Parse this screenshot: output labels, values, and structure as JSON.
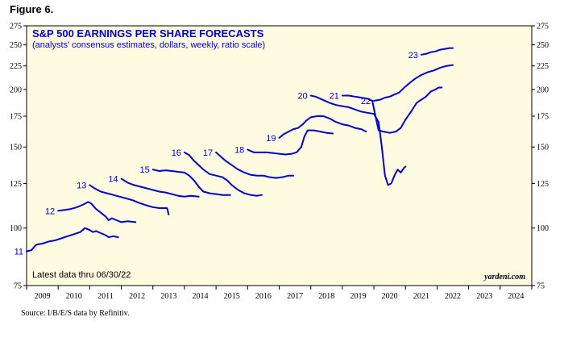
{
  "figure_label": "Figure 6.",
  "source_note": "Source: I/B/E/S data by Refinitiv.",
  "colors": {
    "series": "#0000cc",
    "plot_bg": "#fffbe0",
    "axis": "#000000"
  },
  "chart_data": {
    "type": "line",
    "title": "S&P 500 EARNINGS PER SHARE FORECASTS",
    "subtitle": "(analysts’ consensus estimates, dollars, weekly, ratio scale)",
    "latest_note": "Latest data thru 06/30/22",
    "brand": "yardeni.com",
    "y_scale": "log",
    "ylim": [
      75,
      275
    ],
    "yticks": [
      75,
      100,
      125,
      150,
      175,
      200,
      225,
      250,
      275
    ],
    "xlim": [
      2009,
      2025
    ],
    "xticks": [
      "2009",
      "2010",
      "2011",
      "2012",
      "2013",
      "2014",
      "2015",
      "2016",
      "2017",
      "2018",
      "2019",
      "2020",
      "2021",
      "2022",
      "2023",
      "2024"
    ],
    "grid": false,
    "series": [
      {
        "name": "11",
        "points": [
          [
            2009.0,
            89
          ],
          [
            2009.15,
            89.5
          ],
          [
            2009.3,
            92
          ],
          [
            2009.5,
            92.5
          ],
          [
            2009.7,
            93.5
          ],
          [
            2009.9,
            94
          ],
          [
            2010.1,
            95
          ],
          [
            2010.3,
            96
          ],
          [
            2010.5,
            97
          ],
          [
            2010.7,
            98
          ],
          [
            2010.85,
            100
          ],
          [
            2011.0,
            99
          ],
          [
            2011.1,
            98
          ],
          [
            2011.2,
            98.5
          ],
          [
            2011.35,
            97.5
          ],
          [
            2011.5,
            96.5
          ],
          [
            2011.6,
            95.5
          ],
          [
            2011.75,
            96
          ],
          [
            2011.9,
            95.5
          ]
        ]
      },
      {
        "name": "12",
        "points": [
          [
            2010.0,
            109
          ],
          [
            2010.2,
            109.5
          ],
          [
            2010.4,
            110
          ],
          [
            2010.6,
            111
          ],
          [
            2010.8,
            112.5
          ],
          [
            2010.95,
            114
          ],
          [
            2011.05,
            113
          ],
          [
            2011.2,
            110
          ],
          [
            2011.35,
            108
          ],
          [
            2011.5,
            106
          ],
          [
            2011.6,
            104
          ],
          [
            2011.7,
            105
          ],
          [
            2011.85,
            104
          ],
          [
            2012.0,
            103
          ],
          [
            2012.2,
            103.5
          ],
          [
            2012.45,
            103
          ]
        ]
      },
      {
        "name": "13",
        "points": [
          [
            2011.0,
            124
          ],
          [
            2011.15,
            122
          ],
          [
            2011.35,
            120
          ],
          [
            2011.55,
            119
          ],
          [
            2011.75,
            118
          ],
          [
            2011.95,
            117
          ],
          [
            2012.15,
            116
          ],
          [
            2012.35,
            115
          ],
          [
            2012.55,
            113.5
          ],
          [
            2012.8,
            112
          ],
          [
            2013.0,
            111
          ],
          [
            2013.2,
            110.5
          ],
          [
            2013.45,
            110.5
          ],
          [
            2013.5,
            107
          ]
        ]
      },
      {
        "name": "14",
        "points": [
          [
            2012.0,
            128
          ],
          [
            2012.2,
            125.5
          ],
          [
            2012.4,
            124
          ],
          [
            2012.6,
            123
          ],
          [
            2012.8,
            122
          ],
          [
            2013.0,
            121
          ],
          [
            2013.2,
            120
          ],
          [
            2013.4,
            119.5
          ],
          [
            2013.6,
            118.5
          ],
          [
            2013.8,
            117.5
          ],
          [
            2014.0,
            117
          ],
          [
            2014.2,
            117.5
          ],
          [
            2014.45,
            117
          ]
        ]
      },
      {
        "name": "15",
        "points": [
          [
            2013.0,
            134
          ],
          [
            2013.2,
            133
          ],
          [
            2013.4,
            133.5
          ],
          [
            2013.6,
            133
          ],
          [
            2013.8,
            132.5
          ],
          [
            2014.0,
            132
          ],
          [
            2014.15,
            130
          ],
          [
            2014.3,
            127
          ],
          [
            2014.45,
            123
          ],
          [
            2014.6,
            120
          ],
          [
            2014.8,
            119
          ],
          [
            2015.0,
            118.5
          ],
          [
            2015.2,
            118
          ],
          [
            2015.45,
            118
          ]
        ]
      },
      {
        "name": "16",
        "points": [
          [
            2014.0,
            146
          ],
          [
            2014.15,
            144
          ],
          [
            2014.3,
            140
          ],
          [
            2014.45,
            137
          ],
          [
            2014.6,
            134
          ],
          [
            2014.8,
            131
          ],
          [
            2015.0,
            130
          ],
          [
            2015.2,
            129
          ],
          [
            2015.35,
            127
          ],
          [
            2015.5,
            124
          ],
          [
            2015.7,
            121
          ],
          [
            2015.9,
            119
          ],
          [
            2016.1,
            118
          ],
          [
            2016.3,
            117.5
          ],
          [
            2016.45,
            118
          ]
        ]
      },
      {
        "name": "17",
        "points": [
          [
            2015.0,
            146
          ],
          [
            2015.15,
            143
          ],
          [
            2015.3,
            140
          ],
          [
            2015.5,
            137
          ],
          [
            2015.7,
            134
          ],
          [
            2015.9,
            132
          ],
          [
            2016.1,
            130.5
          ],
          [
            2016.3,
            130
          ],
          [
            2016.5,
            130
          ],
          [
            2016.7,
            129
          ],
          [
            2016.9,
            128.5
          ],
          [
            2017.1,
            129
          ],
          [
            2017.3,
            130
          ],
          [
            2017.45,
            130
          ]
        ]
      },
      {
        "name": "18",
        "points": [
          [
            2016.0,
            148
          ],
          [
            2016.2,
            146
          ],
          [
            2016.4,
            146
          ],
          [
            2016.6,
            146
          ],
          [
            2016.8,
            145.5
          ],
          [
            2017.0,
            145
          ],
          [
            2017.2,
            144.5
          ],
          [
            2017.4,
            145
          ],
          [
            2017.55,
            146
          ],
          [
            2017.7,
            150
          ],
          [
            2017.8,
            158
          ],
          [
            2017.9,
            163
          ],
          [
            2018.1,
            163
          ],
          [
            2018.3,
            162
          ],
          [
            2018.5,
            161
          ],
          [
            2018.7,
            160.5
          ]
        ]
      },
      {
        "name": "19",
        "points": [
          [
            2017.0,
            157
          ],
          [
            2017.15,
            160
          ],
          [
            2017.3,
            162
          ],
          [
            2017.45,
            164
          ],
          [
            2017.6,
            165
          ],
          [
            2017.75,
            168
          ],
          [
            2017.85,
            171
          ],
          [
            2018.0,
            174
          ],
          [
            2018.2,
            175
          ],
          [
            2018.4,
            175
          ],
          [
            2018.6,
            173
          ],
          [
            2018.8,
            170
          ],
          [
            2019.0,
            168
          ],
          [
            2019.2,
            167
          ],
          [
            2019.4,
            165
          ],
          [
            2019.6,
            164
          ],
          [
            2019.75,
            162
          ]
        ]
      },
      {
        "name": "20",
        "points": [
          [
            2018.0,
            194
          ],
          [
            2018.15,
            193
          ],
          [
            2018.3,
            191
          ],
          [
            2018.45,
            189
          ],
          [
            2018.6,
            187
          ],
          [
            2018.8,
            185
          ],
          [
            2019.0,
            184
          ],
          [
            2019.2,
            183
          ],
          [
            2019.4,
            181
          ],
          [
            2019.6,
            179
          ],
          [
            2019.8,
            178
          ],
          [
            2020.0,
            177
          ],
          [
            2020.15,
            170
          ],
          [
            2020.25,
            150
          ],
          [
            2020.35,
            130
          ],
          [
            2020.45,
            124
          ],
          [
            2020.55,
            125
          ],
          [
            2020.65,
            130
          ],
          [
            2020.75,
            134
          ],
          [
            2020.85,
            132
          ],
          [
            2020.95,
            135
          ],
          [
            2021.0,
            136
          ]
        ]
      },
      {
        "name": "21",
        "points": [
          [
            2019.0,
            194
          ],
          [
            2019.2,
            194
          ],
          [
            2019.4,
            193
          ],
          [
            2019.6,
            192
          ],
          [
            2019.8,
            191
          ],
          [
            2019.95,
            189
          ],
          [
            2020.05,
            175
          ],
          [
            2020.15,
            163
          ],
          [
            2020.3,
            162
          ],
          [
            2020.5,
            161
          ],
          [
            2020.7,
            162
          ],
          [
            2020.85,
            165
          ],
          [
            2021.0,
            172
          ],
          [
            2021.2,
            180
          ],
          [
            2021.35,
            187
          ],
          [
            2021.5,
            190
          ],
          [
            2021.65,
            193
          ],
          [
            2021.8,
            198
          ],
          [
            2021.95,
            200
          ],
          [
            2022.05,
            202
          ],
          [
            2022.15,
            202
          ]
        ]
      },
      {
        "name": "22",
        "points": [
          [
            2020.0,
            189
          ],
          [
            2020.2,
            190
          ],
          [
            2020.35,
            192
          ],
          [
            2020.5,
            193
          ],
          [
            2020.65,
            195
          ],
          [
            2020.8,
            197
          ],
          [
            2021.0,
            203
          ],
          [
            2021.15,
            207
          ],
          [
            2021.3,
            211
          ],
          [
            2021.5,
            215
          ],
          [
            2021.7,
            218
          ],
          [
            2021.9,
            220
          ],
          [
            2022.1,
            223
          ],
          [
            2022.3,
            225
          ],
          [
            2022.5,
            226
          ]
        ]
      },
      {
        "name": "23",
        "points": [
          [
            2021.5,
            238
          ],
          [
            2021.65,
            239
          ],
          [
            2021.8,
            241
          ],
          [
            2021.95,
            242
          ],
          [
            2022.1,
            244
          ],
          [
            2022.25,
            245
          ],
          [
            2022.4,
            246
          ],
          [
            2022.5,
            246
          ]
        ]
      }
    ],
    "series_labels": [
      {
        "text": "11",
        "x": 2009.0,
        "y": 89
      },
      {
        "text": "12",
        "x": 2010.0,
        "y": 109
      },
      {
        "text": "13",
        "x": 2011.0,
        "y": 124
      },
      {
        "text": "14",
        "x": 2012.0,
        "y": 128
      },
      {
        "text": "15",
        "x": 2013.0,
        "y": 134
      },
      {
        "text": "16",
        "x": 2014.0,
        "y": 146
      },
      {
        "text": "17",
        "x": 2015.0,
        "y": 146
      },
      {
        "text": "18",
        "x": 2016.0,
        "y": 148
      },
      {
        "text": "19",
        "x": 2017.0,
        "y": 157
      },
      {
        "text": "20",
        "x": 2018.0,
        "y": 194
      },
      {
        "text": "21",
        "x": 2019.0,
        "y": 194
      },
      {
        "text": "22",
        "x": 2020.0,
        "y": 189
      },
      {
        "text": "23",
        "x": 2021.5,
        "y": 238
      }
    ]
  }
}
